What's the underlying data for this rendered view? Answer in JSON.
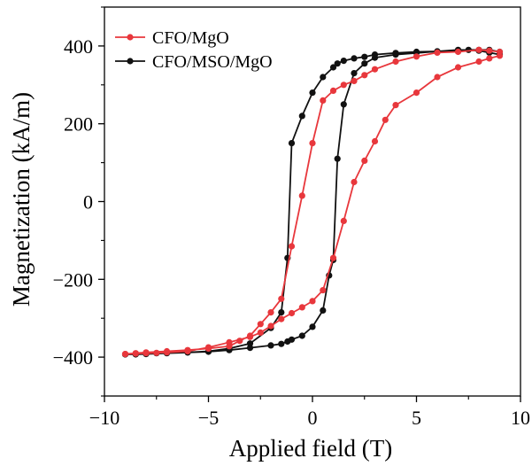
{
  "chart_data": {
    "type": "line",
    "title": "",
    "xlabel": "Applied field (T)",
    "ylabel": "Magnetization (kA/m)",
    "xlim": [
      -10,
      10
    ],
    "ylim": [
      -500,
      500
    ],
    "xticks": [
      -10,
      -5,
      0,
      5,
      10
    ],
    "yticks": [
      -400,
      -200,
      0,
      200,
      400
    ],
    "xtick_labels": [
      "−10",
      "−5",
      "0",
      "5",
      "10"
    ],
    "ytick_labels": [
      "−400",
      "−200",
      "0",
      "200",
      "400"
    ],
    "grid": false,
    "legend_position": "top-left",
    "series": [
      {
        "name": "CFO/MgO",
        "color": "#e8373c",
        "x": [
          -9,
          -8.5,
          -8,
          -7.5,
          -7,
          -6,
          -5,
          -4,
          -3,
          -2.5,
          -2,
          -1.5,
          -1,
          -0.5,
          0,
          0.5,
          1,
          1.5,
          2,
          2.5,
          3,
          3.5,
          4,
          5,
          6,
          7,
          8,
          8.5,
          9,
          9,
          8.5,
          8,
          7,
          6,
          5,
          4,
          3,
          2.5,
          2,
          1.5,
          1,
          0.5,
          0,
          -0.5,
          -1,
          -1.5,
          -2,
          -2.5,
          -3,
          -3.5,
          -4,
          -5,
          -6,
          -7,
          -8,
          -8.5,
          -9
        ],
        "y": [
          -392,
          -391,
          -390,
          -389,
          -388,
          -385,
          -375,
          -362,
          -348,
          -337,
          -320,
          -302,
          -287,
          -272,
          -256,
          -228,
          -145,
          -50,
          50,
          105,
          155,
          210,
          248,
          280,
          320,
          345,
          360,
          368,
          375,
          385,
          388,
          390,
          385,
          383,
          373,
          360,
          340,
          325,
          310,
          300,
          285,
          260,
          150,
          15,
          -115,
          -250,
          -285,
          -315,
          -345,
          -358,
          -372,
          -378,
          -382,
          -385,
          -388,
          -390,
          -392
        ],
        "y_note": ""
      },
      {
        "name": "CFO/MSO/MgO",
        "color": "#111111",
        "x": [
          -9,
          -8.5,
          -8,
          -7.5,
          -7,
          -6,
          -5,
          -4,
          -3,
          -2,
          -1.5,
          -1.2,
          -1,
          -0.5,
          0,
          0.5,
          0.8,
          1,
          1.2,
          1.5,
          2,
          2.5,
          3,
          4,
          5,
          6,
          7,
          7.5,
          8,
          8.5,
          9,
          9,
          8.5,
          8,
          7,
          6,
          5,
          4,
          3,
          2.5,
          2,
          1.5,
          1.2,
          1,
          0.5,
          0,
          -0.5,
          -1,
          -1.2,
          -1.5,
          -2,
          -3,
          -4,
          -5,
          -6,
          -7,
          -8,
          -8.5,
          -9
        ],
        "y": [
          -393,
          -392,
          -391,
          -390,
          -389,
          -388,
          -386,
          -382,
          -376,
          -370,
          -366,
          -360,
          -355,
          -345,
          -322,
          -280,
          -190,
          -150,
          110,
          250,
          330,
          355,
          370,
          378,
          382,
          386,
          388,
          390,
          390,
          390,
          385,
          378,
          383,
          388,
          390,
          386,
          385,
          382,
          378,
          372,
          368,
          362,
          355,
          345,
          320,
          280,
          220,
          150,
          -145,
          -285,
          -325,
          -365,
          -378,
          -385,
          -388,
          -390,
          -392,
          -393,
          -393
        ],
        "y_note": ""
      }
    ]
  }
}
